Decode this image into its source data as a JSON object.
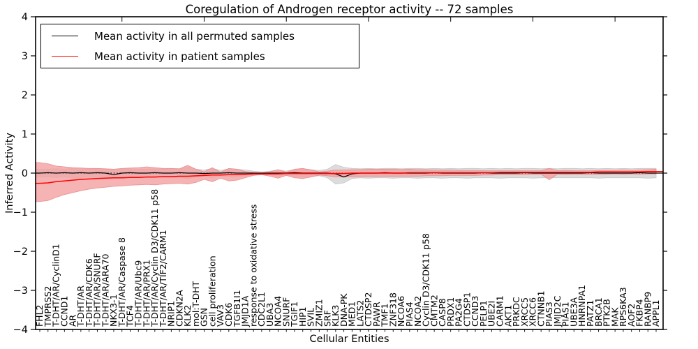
{
  "figure": {
    "title": "Coregulation of Androgen receptor activity -- 72 samples",
    "xlabel": "Cellular Entities",
    "ylabel": "Inferred Activity"
  },
  "chart_data": {
    "type": "line",
    "title": "Coregulation of Androgen receptor activity -- 72 samples",
    "xlabel": "Cellular Entities",
    "ylabel": "Inferred Activity",
    "ylim": [
      -4,
      4
    ],
    "yticks": [
      -4,
      -3,
      -2,
      -1,
      0,
      1,
      2,
      3,
      4
    ],
    "ytick_labels": [
      "−4",
      "−3",
      "−2",
      "−1",
      "0",
      "1",
      "2",
      "3",
      "4"
    ],
    "grid": false,
    "legend_position": "upper left",
    "zero_line": "dotted",
    "x_label_rotation_deg": 90,
    "categories": [
      "FHL2",
      "TMPRSS2",
      "T-DHT/AR/CyclinD1",
      "CCND1",
      "AR",
      "T-DHT/AR",
      "T-DHT/AR/CDK6",
      "T-DHT/AR/SNURF",
      "T-DHT/AR/ARA70",
      "NKX3-1",
      "T-DHT/AR/Caspase 8",
      "TCF4",
      "T-DHT/AR/Ubc9",
      "T-DHT/AR/PRX1",
      "T-DHT/AR/Cyclin D3/CDK11 p58",
      "T-DHT/AR/TIF2/CARM1",
      "NRIP1",
      "CDKN2A",
      "KLK2",
      "mol:T-DHT",
      "GSN",
      "cell proliferation",
      "VAV3",
      "CDK6",
      "TGFB1I1",
      "JMJD1A",
      "response to oxidative stress",
      "CDC2L1",
      "UBA3",
      "NCOA4",
      "SNURF",
      "TGIF1",
      "HIP1",
      "SVIL",
      "ZMIZ1",
      "SRF",
      "KLK3",
      "DNA-PK",
      "MED1",
      "LATS2",
      "CTDSP2",
      "PAWR",
      "TMF1",
      "ZNF318",
      "NCOA6",
      "PIAS4",
      "NCOA2",
      "Cyclin D3/CDK11 p58",
      "CMTM2",
      "CASP8",
      "PRDX1",
      "PA2G4",
      "CTDSP1",
      "CCND3",
      "PELP1",
      "UBE2I",
      "CARM1",
      "AKT1",
      "PRKDC",
      "XRCC5",
      "XRCC6",
      "CTNNB1",
      "PIAS3",
      "JMJD2C",
      "PIAS1",
      "UBE3A",
      "HNRNPA1",
      "PATZ1",
      "BRCA1",
      "PTK2B",
      "MAK",
      "RPS6KA3",
      "AOF2",
      "FKBP4",
      "RANBP9",
      "APPL1"
    ],
    "series": [
      {
        "name": "Mean activity in all permuted samples",
        "color": "#000000",
        "band_color": "#dcdcdc",
        "band_edge_color": "#c3c3c3",
        "values": [
          0.0,
          0.01,
          0.0,
          0.01,
          0.0,
          0.01,
          0.0,
          0.01,
          0.0,
          -0.04,
          0.0,
          0.01,
          0.0,
          0.0,
          0.01,
          0.0,
          0.0,
          0.01,
          0.0,
          0.0,
          -0.01,
          0.0,
          0.0,
          0.01,
          0.0,
          0.0,
          0.0,
          0.0,
          0.0,
          0.0,
          0.0,
          0.01,
          0.0,
          0.0,
          0.0,
          0.0,
          -0.02,
          -0.1,
          -0.02,
          0.0,
          0.0,
          0.0,
          0.01,
          0.0,
          0.0,
          0.0,
          0.0,
          0.0,
          0.01,
          0.0,
          0.0,
          0.0,
          0.0,
          0.0,
          0.01,
          0.0,
          0.0,
          0.0,
          0.0,
          0.01,
          0.0,
          0.0,
          0.0,
          0.0,
          0.0,
          0.0,
          0.0,
          0.01,
          0.0,
          0.0,
          0.0,
          0.0,
          0.0,
          0.01,
          0.0,
          0.0
        ],
        "band_upper": [
          0.1,
          0.1,
          0.11,
          0.1,
          0.12,
          0.11,
          0.1,
          0.11,
          0.1,
          0.1,
          0.1,
          0.11,
          0.1,
          0.1,
          0.11,
          0.1,
          0.11,
          0.1,
          0.16,
          0.1,
          0.08,
          0.12,
          0.07,
          0.11,
          0.1,
          0.08,
          0.05,
          0.03,
          0.05,
          0.08,
          0.05,
          0.09,
          0.11,
          0.09,
          0.07,
          0.1,
          0.22,
          0.15,
          0.12,
          0.11,
          0.12,
          0.11,
          0.12,
          0.12,
          0.11,
          0.12,
          0.12,
          0.11,
          0.12,
          0.11,
          0.12,
          0.11,
          0.12,
          0.12,
          0.11,
          0.12,
          0.11,
          0.12,
          0.11,
          0.12,
          0.12,
          0.11,
          0.12,
          0.11,
          0.12,
          0.12,
          0.11,
          0.12,
          0.11,
          0.12,
          0.11,
          0.12,
          0.11,
          0.12,
          0.12,
          0.12
        ],
        "band_lower": [
          -0.1,
          -0.1,
          -0.11,
          -0.1,
          -0.12,
          -0.11,
          -0.1,
          -0.11,
          -0.1,
          -0.12,
          -0.1,
          -0.11,
          -0.1,
          -0.1,
          -0.11,
          -0.1,
          -0.11,
          -0.1,
          -0.14,
          -0.1,
          -0.09,
          -0.12,
          -0.07,
          -0.1,
          -0.1,
          -0.08,
          -0.05,
          -0.03,
          -0.05,
          -0.08,
          -0.05,
          -0.08,
          -0.1,
          -0.09,
          -0.07,
          -0.12,
          -0.28,
          -0.25,
          -0.14,
          -0.12,
          -0.13,
          -0.12,
          -0.12,
          -0.13,
          -0.12,
          -0.12,
          -0.13,
          -0.12,
          -0.12,
          -0.13,
          -0.12,
          -0.12,
          -0.13,
          -0.12,
          -0.12,
          -0.12,
          -0.13,
          -0.12,
          -0.12,
          -0.12,
          -0.13,
          -0.12,
          -0.12,
          -0.12,
          -0.12,
          -0.12,
          -0.12,
          -0.12,
          -0.13,
          -0.12,
          -0.12,
          -0.12,
          -0.12,
          -0.12,
          -0.13,
          -0.12
        ]
      },
      {
        "name": "Mean activity in patient samples",
        "color": "#ff0000",
        "band_color": "#f4a0a0",
        "band_edge_color": "#e88888",
        "values": [
          -0.26,
          -0.25,
          -0.22,
          -0.2,
          -0.18,
          -0.16,
          -0.15,
          -0.14,
          -0.13,
          -0.12,
          -0.12,
          -0.11,
          -0.11,
          -0.1,
          -0.1,
          -0.09,
          -0.09,
          -0.08,
          -0.08,
          -0.07,
          -0.06,
          -0.05,
          -0.05,
          -0.04,
          -0.04,
          -0.03,
          -0.02,
          -0.02,
          -0.02,
          -0.02,
          -0.01,
          -0.01,
          -0.01,
          -0.01,
          -0.01,
          -0.01,
          -0.01,
          -0.01,
          0.0,
          0.0,
          0.0,
          0.0,
          0.0,
          0.0,
          0.0,
          0.01,
          0.01,
          0.01,
          0.01,
          0.01,
          0.01,
          0.01,
          0.01,
          0.01,
          0.01,
          0.01,
          0.02,
          0.02,
          0.02,
          0.02,
          0.02,
          0.02,
          0.02,
          0.02,
          0.02,
          0.02,
          0.02,
          0.02,
          0.03,
          0.03,
          0.03,
          0.03,
          0.03,
          0.03,
          0.04,
          0.04
        ],
        "band_upper": [
          0.27,
          0.24,
          0.18,
          0.16,
          0.14,
          0.13,
          0.12,
          0.12,
          0.11,
          0.1,
          0.12,
          0.13,
          0.14,
          0.16,
          0.14,
          0.12,
          0.12,
          0.11,
          0.2,
          0.1,
          0.03,
          0.14,
          0.02,
          0.12,
          0.1,
          0.04,
          0.01,
          0.0,
          0.03,
          0.09,
          0.02,
          0.1,
          0.12,
          0.08,
          0.03,
          0.05,
          0.08,
          0.08,
          0.09,
          0.09,
          0.1,
          0.1,
          0.1,
          0.1,
          0.09,
          0.1,
          0.09,
          0.09,
          0.08,
          0.08,
          0.08,
          0.07,
          0.07,
          0.07,
          0.06,
          0.06,
          0.06,
          0.06,
          0.06,
          0.06,
          0.06,
          0.06,
          0.12,
          0.06,
          0.07,
          0.06,
          0.06,
          0.06,
          0.07,
          0.07,
          0.07,
          0.08,
          0.07,
          0.08,
          0.09,
          0.1
        ],
        "band_lower": [
          -0.73,
          -0.7,
          -0.62,
          -0.55,
          -0.5,
          -0.45,
          -0.41,
          -0.38,
          -0.36,
          -0.34,
          -0.33,
          -0.31,
          -0.3,
          -0.29,
          -0.3,
          -0.28,
          -0.27,
          -0.26,
          -0.28,
          -0.24,
          -0.16,
          -0.22,
          -0.13,
          -0.2,
          -0.18,
          -0.12,
          -0.06,
          -0.04,
          -0.08,
          -0.13,
          -0.06,
          -0.12,
          -0.14,
          -0.1,
          -0.05,
          -0.07,
          -0.1,
          -0.1,
          -0.1,
          -0.09,
          -0.09,
          -0.09,
          -0.08,
          -0.09,
          -0.08,
          -0.08,
          -0.08,
          -0.07,
          -0.07,
          -0.07,
          -0.06,
          -0.06,
          -0.06,
          -0.06,
          -0.05,
          -0.05,
          -0.04,
          -0.04,
          -0.04,
          -0.04,
          -0.03,
          -0.03,
          -0.17,
          -0.03,
          -0.04,
          -0.03,
          -0.03,
          -0.03,
          -0.03,
          -0.03,
          -0.02,
          -0.03,
          -0.02,
          -0.03,
          -0.02,
          -0.02
        ]
      }
    ]
  }
}
